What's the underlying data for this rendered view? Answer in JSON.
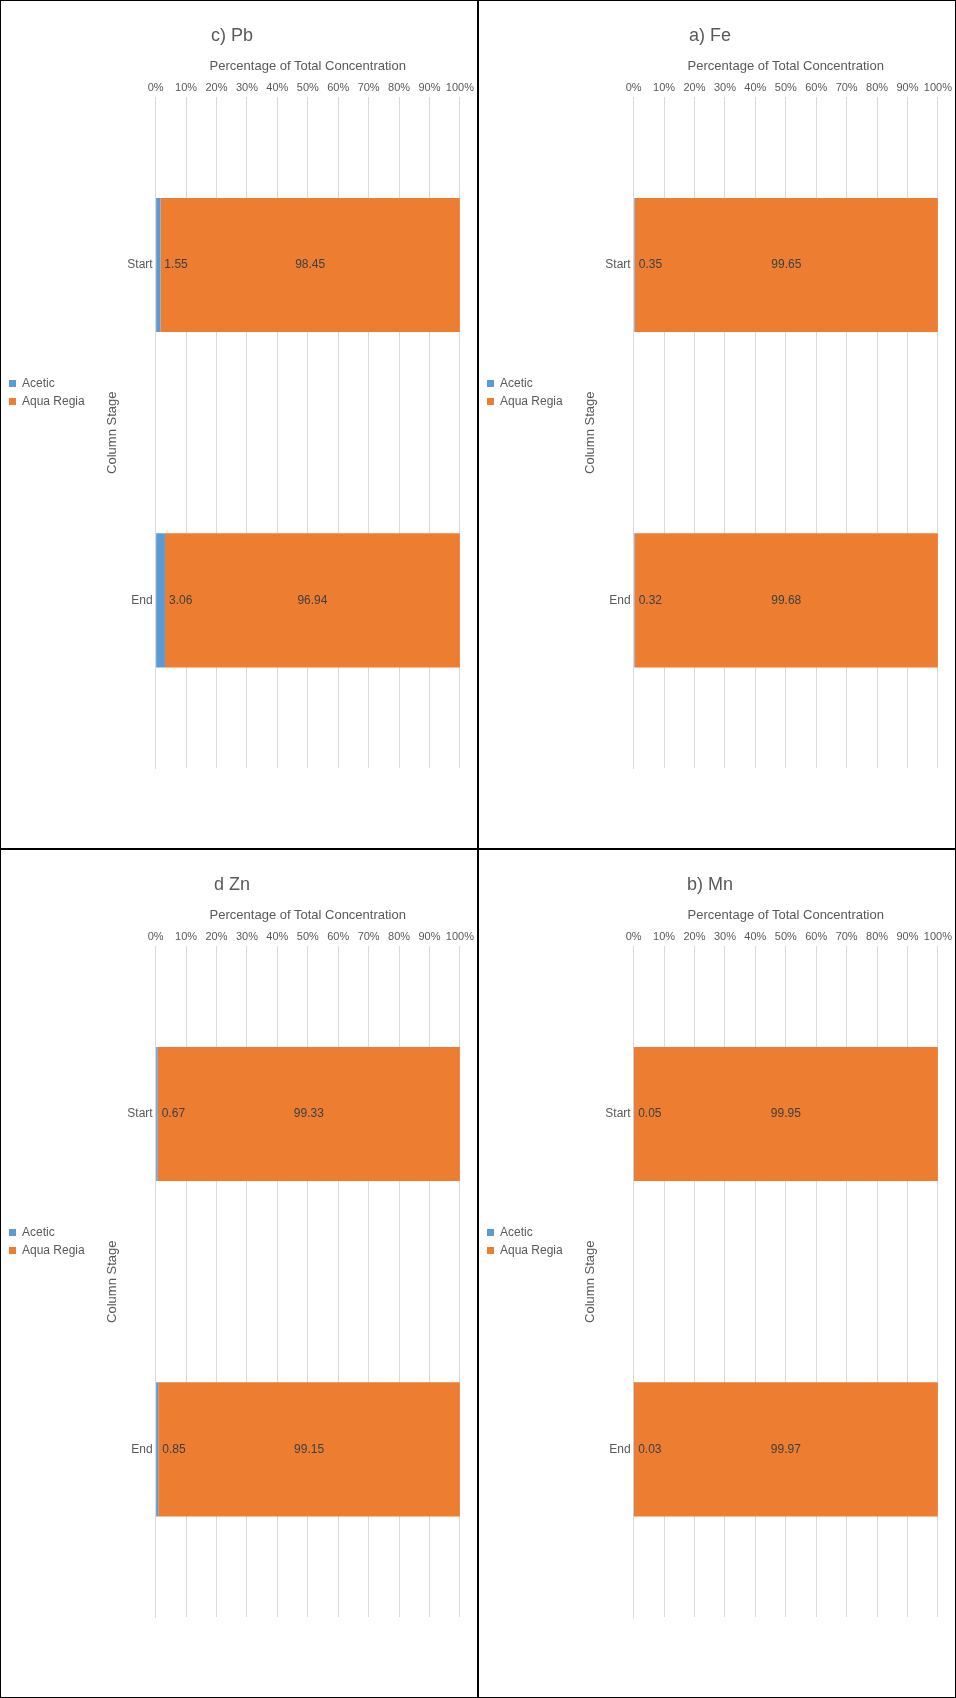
{
  "chart_data": [
    {
      "type": "bar",
      "orientation": "horizontal",
      "title": "a) Fe",
      "xlabel": "Percentage of Total Concentration",
      "ylabel": "Column Stage",
      "categories": [
        "Start",
        "End"
      ],
      "stacked": true,
      "xlim": [
        0,
        100
      ],
      "xticks": [
        {
          "value": 0,
          "label": "0%"
        },
        {
          "value": 10,
          "label": "10%"
        },
        {
          "value": 20,
          "label": "20%"
        },
        {
          "value": 30,
          "label": "30%"
        },
        {
          "value": 40,
          "label": "40%"
        },
        {
          "value": 50,
          "label": "50%"
        },
        {
          "value": 60,
          "label": "60%"
        },
        {
          "value": 70,
          "label": "70%"
        },
        {
          "value": 80,
          "label": "80%"
        },
        {
          "value": 90,
          "label": "90%"
        },
        {
          "value": 100,
          "label": "100%"
        }
      ],
      "grid": "x",
      "legend": "left",
      "data_labels": true,
      "series": [
        {
          "name": "Acetic",
          "color": "#5b9bd5",
          "values": [
            0.35,
            0.32
          ]
        },
        {
          "name": "Aqua Regia",
          "color": "#ed7d31",
          "values": [
            99.65,
            99.68
          ]
        }
      ]
    },
    {
      "type": "bar",
      "orientation": "horizontal",
      "title": "b) Mn",
      "xlabel": "Percentage of Total Concentration",
      "ylabel": "Column Stage",
      "categories": [
        "Start",
        "End"
      ],
      "stacked": true,
      "xlim": [
        0,
        100
      ],
      "xticks": [
        {
          "value": 0,
          "label": "0%"
        },
        {
          "value": 10,
          "label": "10%"
        },
        {
          "value": 20,
          "label": "20%"
        },
        {
          "value": 30,
          "label": "30%"
        },
        {
          "value": 40,
          "label": "40%"
        },
        {
          "value": 50,
          "label": "50%"
        },
        {
          "value": 60,
          "label": "60%"
        },
        {
          "value": 70,
          "label": "70%"
        },
        {
          "value": 80,
          "label": "80%"
        },
        {
          "value": 90,
          "label": "90%"
        },
        {
          "value": 100,
          "label": "100%"
        }
      ],
      "grid": "x",
      "legend": "left",
      "data_labels": true,
      "series": [
        {
          "name": "Acetic",
          "color": "#5b9bd5",
          "values": [
            0.05,
            0.03
          ]
        },
        {
          "name": "Aqua Regia",
          "color": "#ed7d31",
          "values": [
            99.95,
            99.97
          ]
        }
      ]
    },
    {
      "type": "bar",
      "orientation": "horizontal",
      "title": "c) Pb",
      "xlabel": "Percentage of Total Concentration",
      "ylabel": "Column Stage",
      "categories": [
        "Start",
        "End"
      ],
      "stacked": true,
      "xlim": [
        0,
        100
      ],
      "xticks": [
        {
          "value": 0,
          "label": "0%"
        },
        {
          "value": 10,
          "label": "10%"
        },
        {
          "value": 20,
          "label": "20%"
        },
        {
          "value": 30,
          "label": "30%"
        },
        {
          "value": 40,
          "label": "40%"
        },
        {
          "value": 50,
          "label": "50%"
        },
        {
          "value": 60,
          "label": "60%"
        },
        {
          "value": 70,
          "label": "70%"
        },
        {
          "value": 80,
          "label": "80%"
        },
        {
          "value": 90,
          "label": "90%"
        },
        {
          "value": 100,
          "label": "100%"
        }
      ],
      "grid": "x",
      "legend": "left",
      "data_labels": true,
      "series": [
        {
          "name": "Acetic",
          "color": "#5b9bd5",
          "values": [
            1.55,
            3.06
          ]
        },
        {
          "name": "Aqua Regia",
          "color": "#ed7d31",
          "values": [
            98.45,
            96.94
          ]
        }
      ]
    },
    {
      "type": "bar",
      "orientation": "horizontal",
      "title": "d Zn",
      "xlabel": "Percentage of Total Concentration",
      "ylabel": "Column Stage",
      "categories": [
        "Start",
        "End"
      ],
      "stacked": true,
      "xlim": [
        0,
        100
      ],
      "xticks": [
        {
          "value": 0,
          "label": "0%"
        },
        {
          "value": 10,
          "label": "10%"
        },
        {
          "value": 20,
          "label": "20%"
        },
        {
          "value": 30,
          "label": "30%"
        },
        {
          "value": 40,
          "label": "40%"
        },
        {
          "value": 50,
          "label": "50%"
        },
        {
          "value": 60,
          "label": "60%"
        },
        {
          "value": 70,
          "label": "70%"
        },
        {
          "value": 80,
          "label": "80%"
        },
        {
          "value": 90,
          "label": "90%"
        },
        {
          "value": 100,
          "label": "100%"
        }
      ],
      "grid": "x",
      "legend": "left",
      "data_labels": true,
      "series": [
        {
          "name": "Acetic",
          "color": "#5b9bd5",
          "values": [
            0.67,
            0.85
          ]
        },
        {
          "name": "Aqua Regia",
          "color": "#ed7d31",
          "values": [
            99.33,
            99.15
          ]
        }
      ]
    }
  ]
}
